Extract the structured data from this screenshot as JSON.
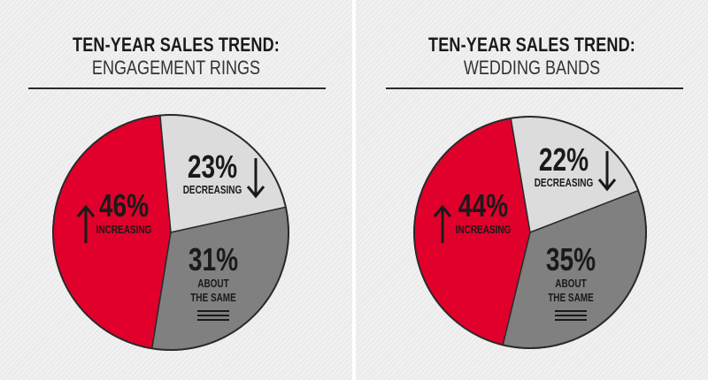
{
  "colors": {
    "increasing": "#e0002b",
    "decreasing": "#dcdcdc",
    "same": "#808080",
    "outline": "#2a2a2a"
  },
  "chart_data": [
    {
      "type": "pie",
      "title": "TEN-YEAR SALES TREND:",
      "subtitle": "ENGAGEMENT RINGS",
      "slices": [
        {
          "key": "increasing",
          "label": "INCREASING",
          "value": 46,
          "value_label": "46%",
          "color": "#e0002b",
          "icon": "arrow-up-icon"
        },
        {
          "key": "decreasing",
          "label": "DECREASING",
          "value": 23,
          "value_label": "23%",
          "color": "#dcdcdc",
          "icon": "arrow-down-icon"
        },
        {
          "key": "same",
          "label": "ABOUT THE SAME",
          "label_lines": [
            "ABOUT",
            "THE SAME"
          ],
          "value": 31,
          "value_label": "31%",
          "color": "#808080",
          "icon": "equal-lines-icon"
        }
      ]
    },
    {
      "type": "pie",
      "title": "TEN-YEAR SALES TREND:",
      "subtitle": "WEDDING BANDS",
      "slices": [
        {
          "key": "increasing",
          "label": "INCREASING",
          "value": 44,
          "value_label": "44%",
          "color": "#e0002b",
          "icon": "arrow-up-icon"
        },
        {
          "key": "decreasing",
          "label": "DECREASING",
          "value": 22,
          "value_label": "22%",
          "color": "#dcdcdc",
          "icon": "arrow-down-icon"
        },
        {
          "key": "same",
          "label": "ABOUT THE SAME",
          "label_lines": [
            "ABOUT",
            "THE SAME"
          ],
          "value": 35,
          "value_label": "35%",
          "color": "#808080",
          "icon": "equal-lines-icon"
        }
      ]
    }
  ]
}
